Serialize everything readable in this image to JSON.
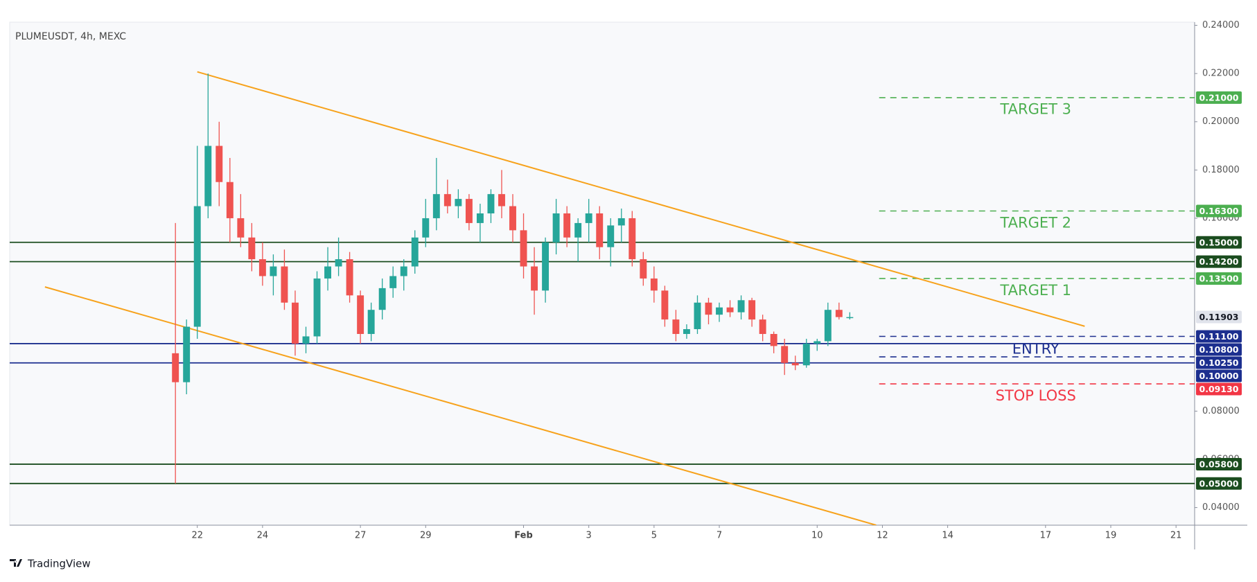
{
  "chart_data": {
    "type": "candlestick",
    "title": "PLUMEUSDT, 4h, MEXC",
    "brand": "TradingView",
    "up_color": "#26a69a",
    "down_color": "#ef5350",
    "x": [
      21.33,
      21.67,
      22.0,
      22.33,
      22.67,
      23.0,
      23.33,
      23.67,
      24.0,
      24.33,
      24.67,
      25.0,
      25.33,
      25.67,
      26.0,
      26.33,
      26.67,
      27.0,
      27.33,
      27.67,
      28.0,
      28.33,
      28.67,
      29.0,
      29.33,
      29.67,
      30.0,
      30.33,
      30.67,
      31.0,
      31.33,
      31.67,
      32.0,
      32.33,
      32.67,
      33.0,
      33.33,
      33.67,
      34.0,
      34.33,
      34.67,
      35.0,
      35.33,
      35.67,
      36.0,
      36.33,
      36.67,
      37.0,
      37.33,
      37.67,
      38.0,
      38.33,
      38.67,
      39.0,
      39.33,
      39.67,
      40.0,
      40.33,
      40.67,
      41.0,
      41.33,
      41.67,
      42.0
    ],
    "open": [
      0.104,
      0.092,
      0.115,
      0.165,
      0.19,
      0.175,
      0.16,
      0.152,
      0.143,
      0.136,
      0.14,
      0.125,
      0.108,
      0.111,
      0.135,
      0.14,
      0.143,
      0.128,
      0.112,
      0.122,
      0.131,
      0.136,
      0.14,
      0.152,
      0.16,
      0.17,
      0.165,
      0.168,
      0.158,
      0.162,
      0.17,
      0.165,
      0.155,
      0.14,
      0.13,
      0.15,
      0.162,
      0.152,
      0.158,
      0.162,
      0.148,
      0.157,
      0.16,
      0.143,
      0.135,
      0.13,
      0.118,
      0.112,
      0.114,
      0.125,
      0.12,
      0.123,
      0.121,
      0.126,
      0.118,
      0.112,
      0.107,
      0.1,
      0.099,
      0.108,
      0.109,
      0.122,
      0.119
    ],
    "high": [
      0.158,
      0.118,
      0.19,
      0.22,
      0.2,
      0.185,
      0.17,
      0.158,
      0.15,
      0.145,
      0.147,
      0.13,
      0.115,
      0.138,
      0.148,
      0.152,
      0.146,
      0.13,
      0.125,
      0.135,
      0.14,
      0.143,
      0.155,
      0.168,
      0.185,
      0.176,
      0.172,
      0.17,
      0.166,
      0.172,
      0.18,
      0.17,
      0.162,
      0.148,
      0.152,
      0.168,
      0.165,
      0.16,
      0.168,
      0.165,
      0.16,
      0.164,
      0.163,
      0.146,
      0.14,
      0.132,
      0.122,
      0.116,
      0.128,
      0.127,
      0.125,
      0.126,
      0.128,
      0.127,
      0.12,
      0.113,
      0.11,
      0.103,
      0.11,
      0.11,
      0.125,
      0.125,
      0.121
    ],
    "low": [
      0.05,
      0.087,
      0.11,
      0.16,
      0.165,
      0.15,
      0.148,
      0.138,
      0.132,
      0.128,
      0.122,
      0.103,
      0.104,
      0.108,
      0.13,
      0.136,
      0.125,
      0.108,
      0.109,
      0.118,
      0.127,
      0.13,
      0.137,
      0.148,
      0.155,
      0.162,
      0.16,
      0.155,
      0.15,
      0.158,
      0.16,
      0.15,
      0.135,
      0.12,
      0.125,
      0.145,
      0.148,
      0.142,
      0.15,
      0.143,
      0.14,
      0.15,
      0.14,
      0.132,
      0.125,
      0.115,
      0.109,
      0.11,
      0.112,
      0.116,
      0.117,
      0.119,
      0.118,
      0.115,
      0.109,
      0.104,
      0.095,
      0.097,
      0.098,
      0.105,
      0.107,
      0.118,
      0.118
    ],
    "close": [
      0.092,
      0.115,
      0.165,
      0.19,
      0.175,
      0.16,
      0.152,
      0.143,
      0.136,
      0.14,
      0.125,
      0.108,
      0.111,
      0.135,
      0.14,
      0.143,
      0.128,
      0.112,
      0.122,
      0.131,
      0.136,
      0.14,
      0.152,
      0.16,
      0.17,
      0.165,
      0.168,
      0.158,
      0.162,
      0.17,
      0.165,
      0.155,
      0.14,
      0.13,
      0.15,
      0.162,
      0.152,
      0.158,
      0.162,
      0.148,
      0.157,
      0.16,
      0.143,
      0.135,
      0.13,
      0.118,
      0.112,
      0.114,
      0.125,
      0.12,
      0.123,
      0.121,
      0.126,
      0.118,
      0.112,
      0.107,
      0.1,
      0.099,
      0.108,
      0.109,
      0.122,
      0.119,
      0.119
    ],
    "xlim": [
      16.25,
      52.57
    ],
    "ylim": [
      0.0327,
      0.2413
    ],
    "xticks": [
      {
        "value": 22,
        "label": "22"
      },
      {
        "value": 24,
        "label": "24"
      },
      {
        "value": 27,
        "label": "27"
      },
      {
        "value": 29,
        "label": "29"
      },
      {
        "value": 32,
        "label": "Feb"
      },
      {
        "value": 34,
        "label": "3"
      },
      {
        "value": 36,
        "label": "5"
      },
      {
        "value": 38,
        "label": "7"
      },
      {
        "value": 41,
        "label": "10"
      },
      {
        "value": 43,
        "label": "12"
      },
      {
        "value": 45,
        "label": "14"
      },
      {
        "value": 48,
        "label": "17"
      },
      {
        "value": 50,
        "label": "19"
      },
      {
        "value": 52,
        "label": "21"
      }
    ],
    "yticks": [
      {
        "value": 0.24,
        "label": "0.24000"
      },
      {
        "value": 0.22,
        "label": "0.22000"
      },
      {
        "value": 0.2,
        "label": "0.20000"
      },
      {
        "value": 0.18,
        "label": "0.18000"
      },
      {
        "value": 0.16,
        "label": "0.16000"
      },
      {
        "value": 0.08,
        "label": "0.08000"
      },
      {
        "value": 0.06,
        "label": "0.06000"
      },
      {
        "value": 0.04,
        "label": "0.04000"
      }
    ],
    "levels": [
      {
        "value": 0.21,
        "label": "0.21000",
        "color": "#4caf50",
        "style": "dashed",
        "from": 42.9
      },
      {
        "value": 0.163,
        "label": "0.16300",
        "color": "#4caf50",
        "style": "dashed",
        "from": 42.9
      },
      {
        "value": 0.15,
        "label": "0.15000",
        "color": "#1b4d1f",
        "style": "solid"
      },
      {
        "value": 0.142,
        "label": "0.14200",
        "color": "#1b4d1f",
        "style": "solid"
      },
      {
        "value": 0.135,
        "label": "0.13500",
        "color": "#4caf50",
        "style": "dashed",
        "from": 42.9
      },
      {
        "value": 0.111,
        "label": "0.11100",
        "color": "#1c2f8f",
        "style": "dashed",
        "from": 42.9
      },
      {
        "value": 0.108,
        "label": "0.10800",
        "color": "#1c2f8f",
        "style": "solid"
      },
      {
        "value": 0.1025,
        "label": "0.10250",
        "color": "#1c2f8f",
        "style": "dashed",
        "from": 42.9
      },
      {
        "value": 0.1,
        "label": "0.10000",
        "color": "#1c2f8f",
        "style": "solid"
      },
      {
        "value": 0.0913,
        "label": "0.09130",
        "color": "#f23645",
        "style": "dashed",
        "from": 42.9
      },
      {
        "value": 0.058,
        "label": "0.05800",
        "color": "#1b4d1f",
        "style": "solid"
      },
      {
        "value": 0.05,
        "label": "0.05000",
        "color": "#1b4d1f",
        "style": "solid"
      }
    ],
    "last_price": {
      "value": 0.11903,
      "label": "0.11903"
    },
    "trendlines": [
      {
        "color": "#f7a21b",
        "x": [
          22.0,
          49.2
        ],
        "y": [
          0.2207,
          0.1152
        ]
      },
      {
        "color": "#f7a21b",
        "x": [
          17.33,
          42.81
        ],
        "y": [
          0.1315,
          0.0327
        ]
      }
    ],
    "annotations": [
      {
        "text": "TARGET 3",
        "x": 47.7,
        "y": 0.205,
        "color": "#4caf50"
      },
      {
        "text": "TARGET 2",
        "x": 47.7,
        "y": 0.1578,
        "color": "#4caf50"
      },
      {
        "text": "TARGET 1",
        "x": 47.7,
        "y": 0.1298,
        "color": "#4caf50"
      },
      {
        "text": "ENTRY",
        "x": 47.7,
        "y": 0.1056,
        "color": "#1c2f8f"
      },
      {
        "text": "STOP LOSS",
        "x": 47.7,
        "y": 0.0862,
        "color": "#f23645"
      }
    ]
  }
}
